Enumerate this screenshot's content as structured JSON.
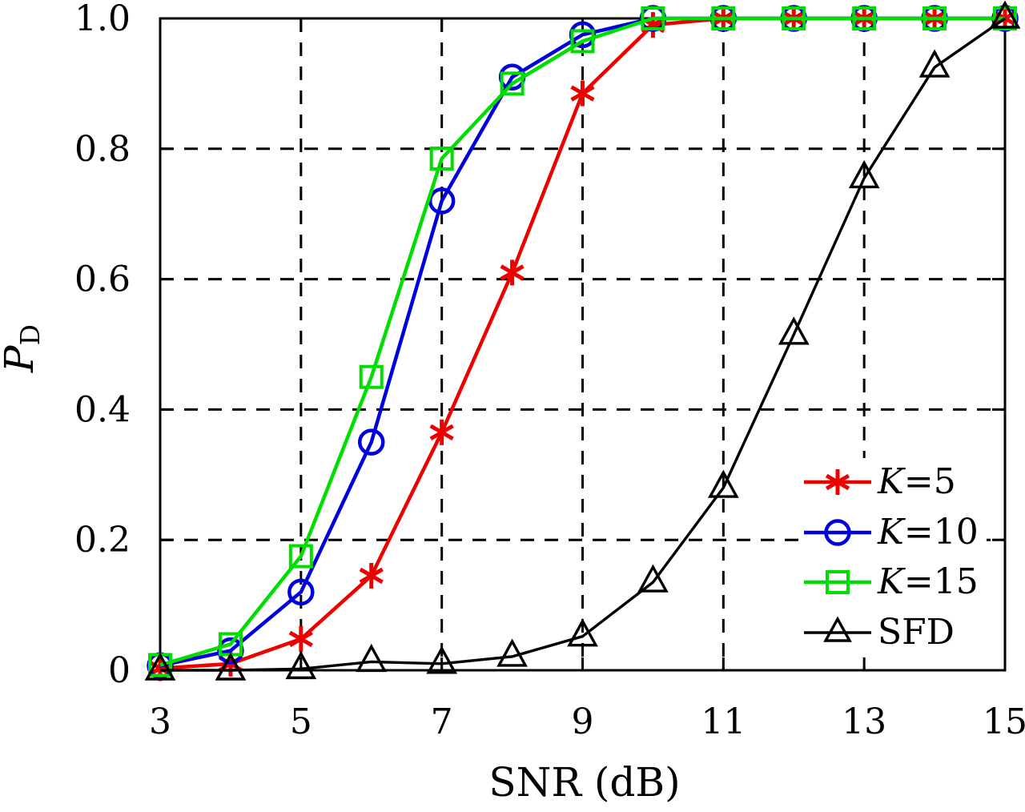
{
  "figure": {
    "xlabel": "SNR (dB)",
    "ylabel_main": "P",
    "ylabel_sub": "D"
  },
  "chart_data": {
    "type": "line",
    "title": "",
    "xlabel": "SNR (dB)",
    "ylabel": "P_D",
    "xlim": [
      3,
      15
    ],
    "ylim": [
      0,
      1.0
    ],
    "xticks": [
      3,
      5,
      7,
      9,
      11,
      13,
      15
    ],
    "xtick_labels": [
      "3",
      "5",
      "7",
      "9",
      "11",
      "13",
      "15"
    ],
    "yticks": [
      0,
      0.2,
      0.4,
      0.6,
      0.8,
      1.0
    ],
    "ytick_labels": [
      "0",
      "0.2",
      "0.4",
      "0.6",
      "0.8",
      "1.0"
    ],
    "grid": "dashed black gridlines at interior ticks",
    "legend_position": "lower right, frameless, white background",
    "x": [
      3,
      4,
      5,
      6,
      7,
      8,
      9,
      10,
      11,
      12,
      13,
      14,
      15
    ],
    "series": [
      {
        "name": "K=5",
        "color": "#ee0000",
        "marker": "asterisk",
        "values": [
          0.003,
          0.01,
          0.048,
          0.145,
          0.365,
          0.61,
          0.885,
          0.99,
          1.0,
          1.0,
          1.0,
          1.0,
          1.0
        ]
      },
      {
        "name": "K=10",
        "color": "#0000dd",
        "marker": "circle",
        "values": [
          0.007,
          0.03,
          0.12,
          0.35,
          0.72,
          0.91,
          0.975,
          1.0,
          1.0,
          1.0,
          1.0,
          1.0,
          1.0
        ]
      },
      {
        "name": "K=15",
        "color": "#00dd00",
        "marker": "square",
        "values": [
          0.008,
          0.04,
          0.175,
          0.45,
          0.785,
          0.9,
          0.965,
          1.0,
          1.0,
          1.0,
          1.0,
          1.0,
          1.0
        ]
      },
      {
        "name": "SFD",
        "color": "#000000",
        "marker": "triangle",
        "values": [
          0.0,
          0.0,
          0.002,
          0.013,
          0.01,
          0.021,
          0.052,
          0.135,
          0.28,
          0.515,
          0.755,
          0.925,
          1.0
        ]
      }
    ]
  }
}
